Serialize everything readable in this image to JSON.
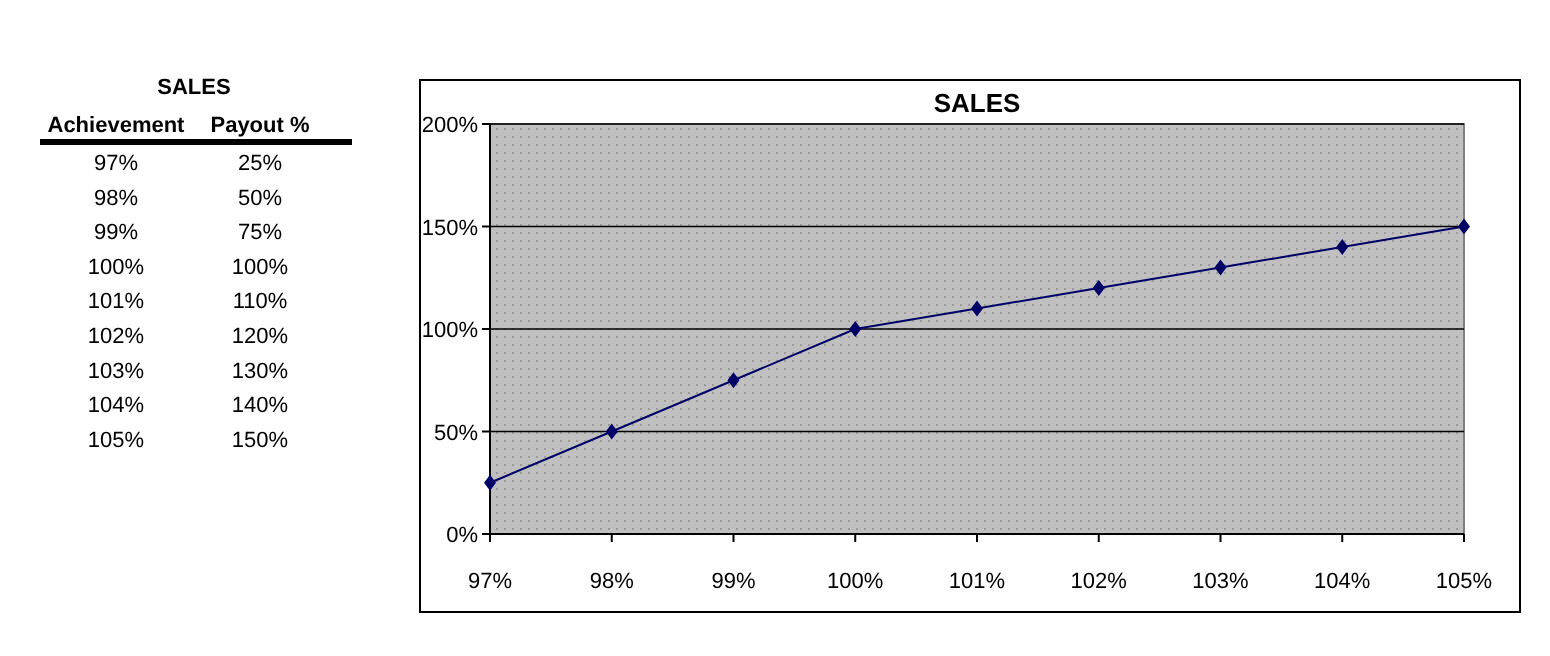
{
  "chart_data": {
    "type": "line",
    "title": "SALES",
    "annotations": [
      "SALES",
      "Achievement",
      "Payout %",
      "25%",
      "50%",
      "75%",
      "100%",
      "110%",
      "120%",
      "130%",
      "140%",
      "150%"
    ],
    "categories": [
      "97%",
      "98%",
      "99%",
      "100%",
      "101%",
      "102%",
      "103%",
      "104%",
      "105%"
    ],
    "series": [
      {
        "color": "#000066",
        "values": [
          25,
          50,
          75,
          100,
          110,
          120,
          130,
          140,
          150
        ]
      }
    ],
    "ylim": [
      0,
      200
    ],
    "yticks": [
      {
        "value": 0,
        "label": "0%"
      },
      {
        "value": 50,
        "label": "50%"
      },
      {
        "value": 100,
        "label": "100%"
      },
      {
        "value": 150,
        "label": "150%"
      },
      {
        "value": 200,
        "label": "200%"
      }
    ],
    "grid": "y",
    "marker": "diamond",
    "line_style": "solid"
  }
}
